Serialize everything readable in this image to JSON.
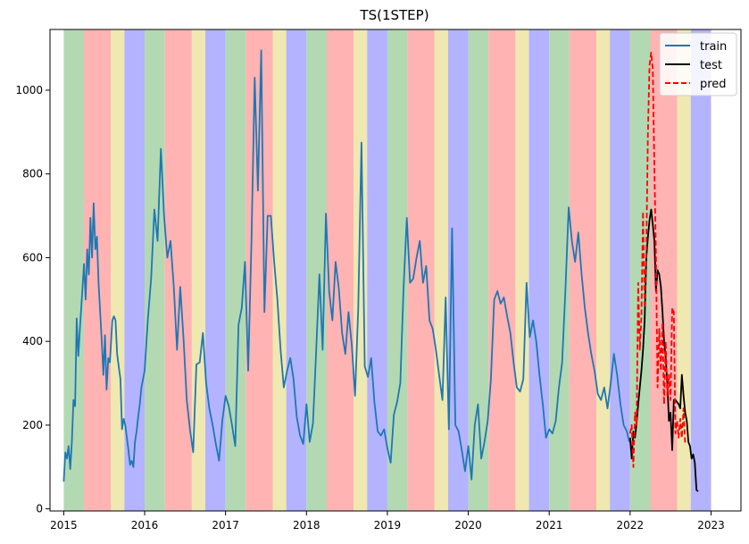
{
  "chart_data": {
    "type": "line",
    "title": "TS(1STEP)",
    "xlabel": "",
    "ylabel": "",
    "xlim": [
      2014.83,
      2023.37
    ],
    "ylim": [
      -5,
      1145
    ],
    "x_ticks": [
      2015,
      2016,
      2017,
      2018,
      2019,
      2020,
      2021,
      2022,
      2023
    ],
    "x_tick_labels": [
      "2015",
      "2016",
      "2017",
      "2018",
      "2019",
      "2020",
      "2021",
      "2022",
      "2023"
    ],
    "y_ticks": [
      0,
      200,
      400,
      600,
      800,
      1000
    ],
    "y_tick_labels": [
      "0",
      "200",
      "400",
      "600",
      "800",
      "1000"
    ],
    "grid": false,
    "legend_position": "top-right",
    "season_bands": {
      "pattern_offsets": [
        {
          "start": 0.0,
          "end": 0.25,
          "color": "#b3d9b3"
        },
        {
          "start": 0.25,
          "end": 0.583,
          "color": "#ffb3b3"
        },
        {
          "start": 0.583,
          "end": 0.75,
          "color": "#efe8b0"
        },
        {
          "start": 0.75,
          "end": 1.0,
          "color": "#b3b3ff"
        }
      ],
      "years": [
        2015,
        2016,
        2017,
        2018,
        2019,
        2020,
        2021,
        2022
      ]
    },
    "series": [
      {
        "name": "train",
        "color": "#1f77b4",
        "style": "solid",
        "points": [
          [
            2015.0,
            65
          ],
          [
            2015.02,
            135
          ],
          [
            2015.04,
            120
          ],
          [
            2015.06,
            150
          ],
          [
            2015.08,
            95
          ],
          [
            2015.1,
            160
          ],
          [
            2015.12,
            260
          ],
          [
            2015.14,
            245
          ],
          [
            2015.16,
            455
          ],
          [
            2015.18,
            365
          ],
          [
            2015.2,
            430
          ],
          [
            2015.22,
            490
          ],
          [
            2015.25,
            585
          ],
          [
            2015.27,
            500
          ],
          [
            2015.29,
            620
          ],
          [
            2015.31,
            560
          ],
          [
            2015.33,
            695
          ],
          [
            2015.35,
            600
          ],
          [
            2015.37,
            730
          ],
          [
            2015.39,
            620
          ],
          [
            2015.41,
            650
          ],
          [
            2015.43,
            540
          ],
          [
            2015.45,
            470
          ],
          [
            2015.47,
            400
          ],
          [
            2015.49,
            320
          ],
          [
            2015.51,
            415
          ],
          [
            2015.53,
            285
          ],
          [
            2015.55,
            360
          ],
          [
            2015.57,
            350
          ],
          [
            2015.6,
            450
          ],
          [
            2015.62,
            460
          ],
          [
            2015.64,
            450
          ],
          [
            2015.66,
            370
          ],
          [
            2015.68,
            340
          ],
          [
            2015.7,
            310
          ],
          [
            2015.72,
            190
          ],
          [
            2015.74,
            215
          ],
          [
            2015.76,
            200
          ],
          [
            2015.78,
            170
          ],
          [
            2015.8,
            140
          ],
          [
            2015.82,
            105
          ],
          [
            2015.84,
            115
          ],
          [
            2015.86,
            100
          ],
          [
            2015.88,
            160
          ],
          [
            2015.9,
            185
          ],
          [
            2015.92,
            220
          ],
          [
            2015.94,
            250
          ],
          [
            2015.96,
            290
          ],
          [
            2015.98,
            310
          ],
          [
            2016.0,
            330
          ],
          [
            2016.04,
            455
          ],
          [
            2016.08,
            550
          ],
          [
            2016.12,
            715
          ],
          [
            2016.16,
            640
          ],
          [
            2016.2,
            860
          ],
          [
            2016.24,
            700
          ],
          [
            2016.28,
            600
          ],
          [
            2016.32,
            640
          ],
          [
            2016.36,
            530
          ],
          [
            2016.4,
            380
          ],
          [
            2016.44,
            530
          ],
          [
            2016.48,
            410
          ],
          [
            2016.52,
            260
          ],
          [
            2016.56,
            190
          ],
          [
            2016.6,
            135
          ],
          [
            2016.64,
            345
          ],
          [
            2016.68,
            350
          ],
          [
            2016.72,
            420
          ],
          [
            2016.76,
            300
          ],
          [
            2016.8,
            240
          ],
          [
            2016.84,
            200
          ],
          [
            2016.88,
            155
          ],
          [
            2016.92,
            115
          ],
          [
            2016.96,
            210
          ],
          [
            2017.0,
            270
          ],
          [
            2017.04,
            245
          ],
          [
            2017.08,
            200
          ],
          [
            2017.12,
            150
          ],
          [
            2017.16,
            440
          ],
          [
            2017.2,
            480
          ],
          [
            2017.24,
            590
          ],
          [
            2017.28,
            330
          ],
          [
            2017.32,
            640
          ],
          [
            2017.36,
            1030
          ],
          [
            2017.4,
            760
          ],
          [
            2017.44,
            1095
          ],
          [
            2017.48,
            470
          ],
          [
            2017.52,
            700
          ],
          [
            2017.56,
            700
          ],
          [
            2017.6,
            590
          ],
          [
            2017.64,
            500
          ],
          [
            2017.68,
            380
          ],
          [
            2017.72,
            290
          ],
          [
            2017.76,
            330
          ],
          [
            2017.8,
            360
          ],
          [
            2017.84,
            310
          ],
          [
            2017.88,
            220
          ],
          [
            2017.92,
            175
          ],
          [
            2017.96,
            155
          ],
          [
            2018.0,
            250
          ],
          [
            2018.04,
            160
          ],
          [
            2018.08,
            205
          ],
          [
            2018.12,
            380
          ],
          [
            2018.16,
            560
          ],
          [
            2018.2,
            380
          ],
          [
            2018.24,
            705
          ],
          [
            2018.28,
            520
          ],
          [
            2018.32,
            450
          ],
          [
            2018.36,
            590
          ],
          [
            2018.4,
            525
          ],
          [
            2018.44,
            420
          ],
          [
            2018.48,
            370
          ],
          [
            2018.52,
            470
          ],
          [
            2018.56,
            390
          ],
          [
            2018.6,
            270
          ],
          [
            2018.64,
            480
          ],
          [
            2018.68,
            875
          ],
          [
            2018.72,
            340
          ],
          [
            2018.76,
            315
          ],
          [
            2018.8,
            360
          ],
          [
            2018.84,
            255
          ],
          [
            2018.88,
            185
          ],
          [
            2018.92,
            175
          ],
          [
            2018.96,
            190
          ],
          [
            2019.0,
            145
          ],
          [
            2019.04,
            110
          ],
          [
            2019.08,
            225
          ],
          [
            2019.12,
            255
          ],
          [
            2019.16,
            300
          ],
          [
            2019.2,
            530
          ],
          [
            2019.24,
            695
          ],
          [
            2019.28,
            540
          ],
          [
            2019.32,
            550
          ],
          [
            2019.36,
            600
          ],
          [
            2019.4,
            640
          ],
          [
            2019.44,
            540
          ],
          [
            2019.48,
            580
          ],
          [
            2019.52,
            450
          ],
          [
            2019.56,
            430
          ],
          [
            2019.6,
            380
          ],
          [
            2019.64,
            320
          ],
          [
            2019.68,
            260
          ],
          [
            2019.72,
            505
          ],
          [
            2019.76,
            190
          ],
          [
            2019.8,
            670
          ],
          [
            2019.84,
            200
          ],
          [
            2019.88,
            185
          ],
          [
            2019.92,
            140
          ],
          [
            2019.96,
            90
          ],
          [
            2020.0,
            150
          ],
          [
            2020.04,
            70
          ],
          [
            2020.08,
            200
          ],
          [
            2020.12,
            250
          ],
          [
            2020.16,
            120
          ],
          [
            2020.2,
            160
          ],
          [
            2020.24,
            210
          ],
          [
            2020.28,
            310
          ],
          [
            2020.32,
            500
          ],
          [
            2020.36,
            520
          ],
          [
            2020.4,
            490
          ],
          [
            2020.44,
            505
          ],
          [
            2020.48,
            460
          ],
          [
            2020.52,
            420
          ],
          [
            2020.56,
            350
          ],
          [
            2020.6,
            290
          ],
          [
            2020.64,
            280
          ],
          [
            2020.68,
            310
          ],
          [
            2020.72,
            540
          ],
          [
            2020.76,
            410
          ],
          [
            2020.8,
            450
          ],
          [
            2020.84,
            400
          ],
          [
            2020.88,
            320
          ],
          [
            2020.92,
            250
          ],
          [
            2020.96,
            170
          ],
          [
            2021.0,
            190
          ],
          [
            2021.04,
            180
          ],
          [
            2021.08,
            210
          ],
          [
            2021.12,
            290
          ],
          [
            2021.16,
            350
          ],
          [
            2021.2,
            520
          ],
          [
            2021.24,
            720
          ],
          [
            2021.28,
            640
          ],
          [
            2021.32,
            590
          ],
          [
            2021.36,
            660
          ],
          [
            2021.4,
            560
          ],
          [
            2021.44,
            480
          ],
          [
            2021.48,
            420
          ],
          [
            2021.52,
            370
          ],
          [
            2021.56,
            330
          ],
          [
            2021.6,
            275
          ],
          [
            2021.64,
            260
          ],
          [
            2021.68,
            290
          ],
          [
            2021.72,
            240
          ],
          [
            2021.76,
            300
          ],
          [
            2021.8,
            370
          ],
          [
            2021.84,
            320
          ],
          [
            2021.88,
            250
          ],
          [
            2021.92,
            200
          ],
          [
            2021.96,
            185
          ],
          [
            2021.99,
            160
          ]
        ]
      },
      {
        "name": "test",
        "color": "#000000",
        "style": "solid",
        "points": [
          [
            2022.0,
            170
          ],
          [
            2022.02,
            120
          ],
          [
            2022.04,
            185
          ],
          [
            2022.06,
            170
          ],
          [
            2022.08,
            205
          ],
          [
            2022.1,
            250
          ],
          [
            2022.12,
            290
          ],
          [
            2022.14,
            330
          ],
          [
            2022.16,
            380
          ],
          [
            2022.18,
            450
          ],
          [
            2022.2,
            600
          ],
          [
            2022.22,
            650
          ],
          [
            2022.24,
            690
          ],
          [
            2022.26,
            715
          ],
          [
            2022.28,
            680
          ],
          [
            2022.3,
            640
          ],
          [
            2022.32,
            520
          ],
          [
            2022.34,
            570
          ],
          [
            2022.36,
            560
          ],
          [
            2022.38,
            530
          ],
          [
            2022.4,
            470
          ],
          [
            2022.42,
            400
          ],
          [
            2022.44,
            360
          ],
          [
            2022.46,
            300
          ],
          [
            2022.48,
            210
          ],
          [
            2022.5,
            230
          ],
          [
            2022.52,
            140
          ],
          [
            2022.54,
            260
          ],
          [
            2022.56,
            260
          ],
          [
            2022.58,
            255
          ],
          [
            2022.6,
            250
          ],
          [
            2022.62,
            240
          ],
          [
            2022.64,
            320
          ],
          [
            2022.66,
            270
          ],
          [
            2022.68,
            230
          ],
          [
            2022.7,
            210
          ],
          [
            2022.72,
            160
          ],
          [
            2022.74,
            150
          ],
          [
            2022.76,
            120
          ],
          [
            2022.78,
            130
          ],
          [
            2022.8,
            110
          ],
          [
            2022.82,
            45
          ],
          [
            2022.84,
            42
          ]
        ]
      },
      {
        "name": "pred",
        "color": "#ff0000",
        "style": "dashed",
        "points": [
          [
            2022.0,
            180
          ],
          [
            2022.02,
            200
          ],
          [
            2022.04,
            100
          ],
          [
            2022.06,
            230
          ],
          [
            2022.08,
            200
          ],
          [
            2022.1,
            540
          ],
          [
            2022.12,
            380
          ],
          [
            2022.14,
            460
          ],
          [
            2022.16,
            710
          ],
          [
            2022.18,
            480
          ],
          [
            2022.2,
            620
          ],
          [
            2022.22,
            900
          ],
          [
            2022.24,
            1060
          ],
          [
            2022.26,
            1090
          ],
          [
            2022.28,
            1050
          ],
          [
            2022.3,
            820
          ],
          [
            2022.32,
            600
          ],
          [
            2022.34,
            290
          ],
          [
            2022.36,
            430
          ],
          [
            2022.38,
            330
          ],
          [
            2022.4,
            445
          ],
          [
            2022.42,
            250
          ],
          [
            2022.44,
            400
          ],
          [
            2022.46,
            270
          ],
          [
            2022.48,
            320
          ],
          [
            2022.5,
            260
          ],
          [
            2022.52,
            480
          ],
          [
            2022.54,
            470
          ],
          [
            2022.56,
            180
          ],
          [
            2022.58,
            210
          ],
          [
            2022.6,
            170
          ],
          [
            2022.62,
            215
          ],
          [
            2022.64,
            170
          ],
          [
            2022.66,
            240
          ],
          [
            2022.68,
            155
          ]
        ]
      }
    ]
  }
}
